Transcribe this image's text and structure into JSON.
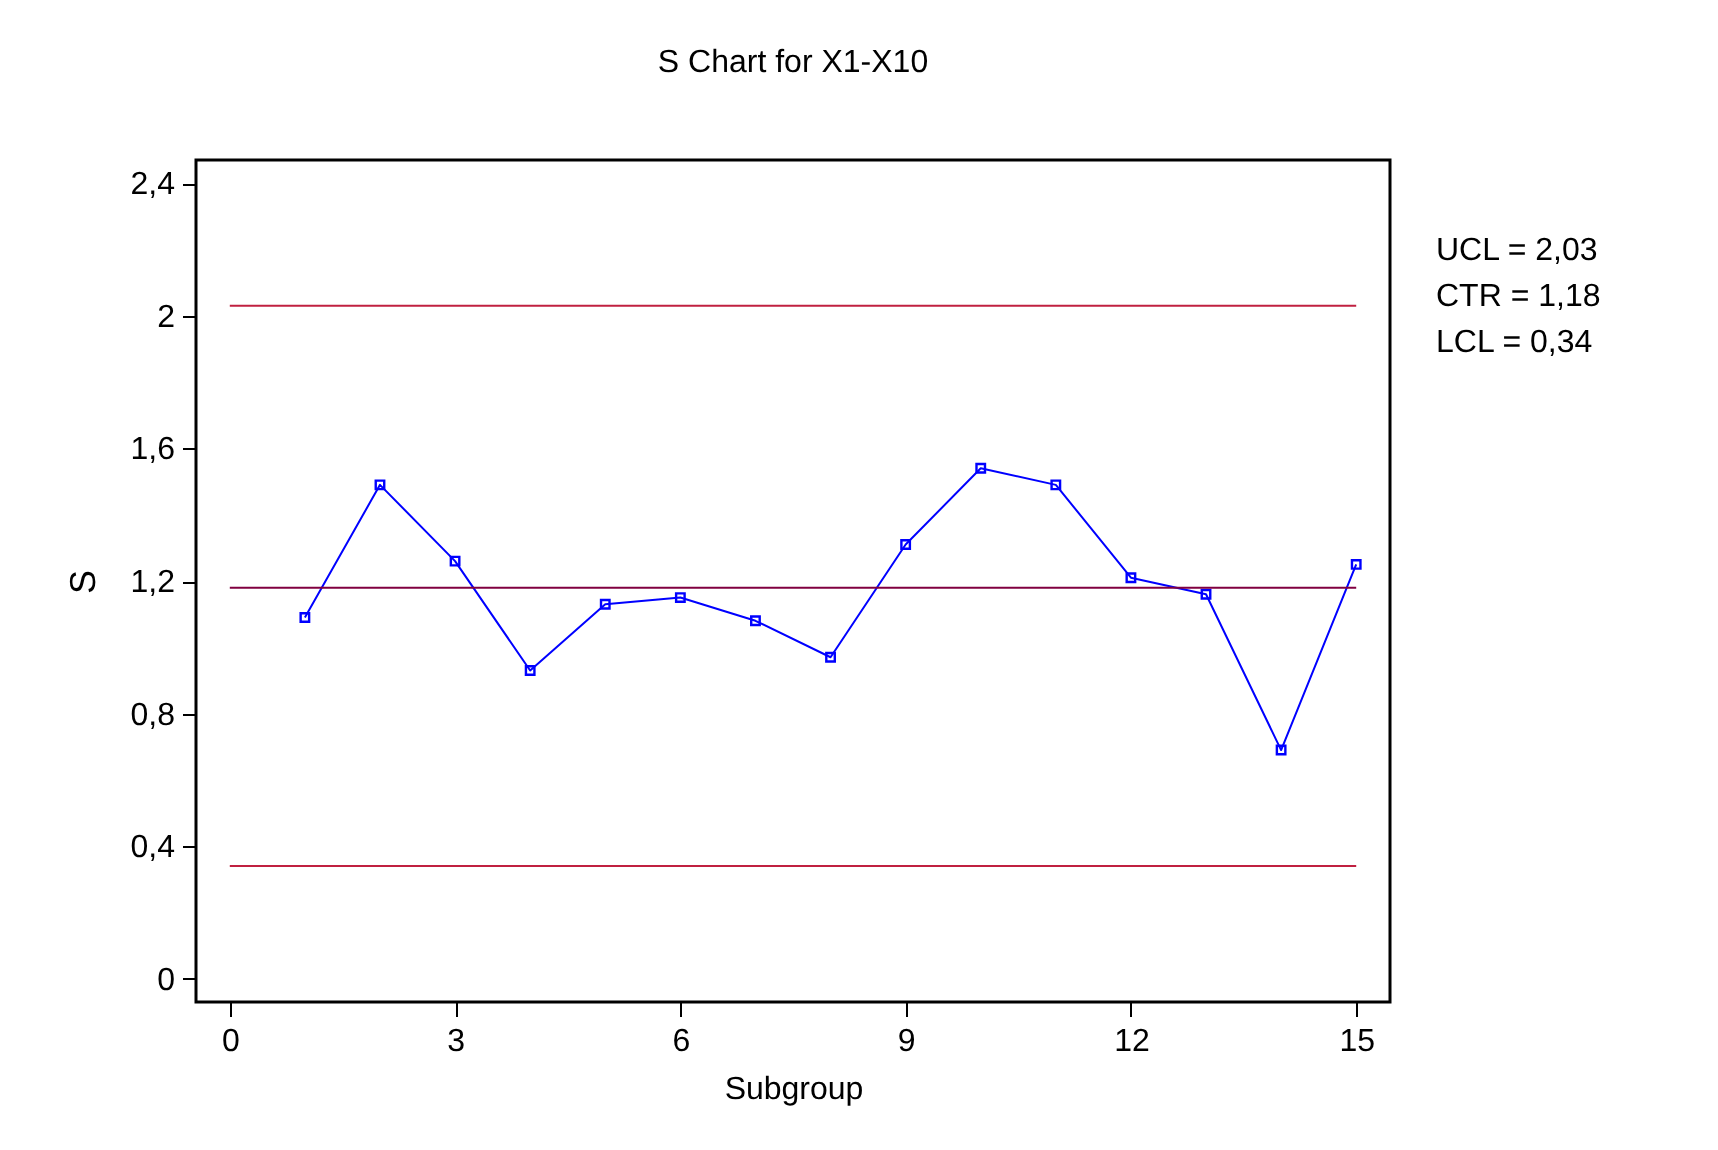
{
  "chart_data": {
    "type": "line",
    "title": "S Chart for X1-X10",
    "xlabel": "Subgroup",
    "ylabel": "S",
    "x": [
      1,
      2,
      3,
      4,
      5,
      6,
      7,
      8,
      9,
      10,
      11,
      12,
      13,
      14,
      15
    ],
    "series": [
      {
        "color": "#0000ff",
        "values": [
          1.09,
          1.49,
          1.26,
          0.93,
          1.13,
          1.15,
          1.08,
          0.97,
          1.31,
          1.54,
          1.49,
          1.21,
          1.16,
          0.69,
          1.25
        ]
      }
    ],
    "marker": "square",
    "line_style": "solid",
    "grid": false,
    "xlim": [
      -0.45,
      15.45
    ],
    "xticks": [
      0,
      3,
      6,
      9,
      12,
      15
    ],
    "ylim": [
      -0.07,
      2.47
    ],
    "yticks": [
      {
        "value": 0,
        "label": "0"
      },
      {
        "value": 0.4,
        "label": "0,4"
      },
      {
        "value": 0.8,
        "label": "0,8"
      },
      {
        "value": 1.2,
        "label": "1,2"
      },
      {
        "value": 1.6,
        "label": "1,6"
      },
      {
        "value": 2,
        "label": "2"
      },
      {
        "value": 2.4,
        "label": "2,4"
      }
    ],
    "ref_lines": [
      {
        "axis": "y",
        "value": 2.03,
        "color": "#c02040"
      },
      {
        "axis": "y",
        "value": 1.18,
        "color": "#800040"
      },
      {
        "axis": "y",
        "value": 0.34,
        "color": "#c02040"
      }
    ],
    "annotations": [
      "UCL = 2,03",
      "CTR = 1,18",
      "LCL = 0,34"
    ]
  }
}
